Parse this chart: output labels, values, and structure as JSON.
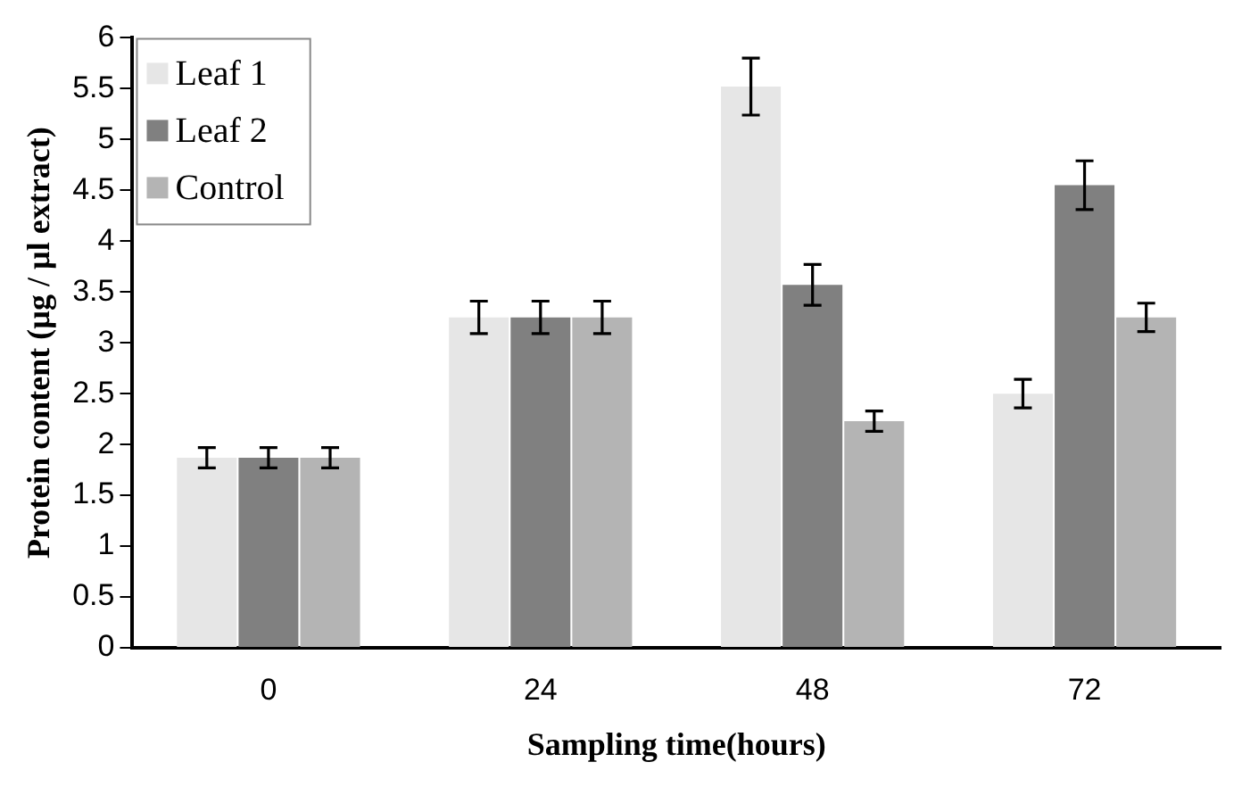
{
  "chart_data": {
    "type": "bar",
    "xlabel": "Sampling time(hours)",
    "ylabel": "Protein content (µg / µl extract)",
    "categories": [
      "0",
      "24",
      "48",
      "72"
    ],
    "series": [
      {
        "name": "Leaf 1",
        "color": "#e6e6e6",
        "values": [
          1.87,
          3.25,
          5.52,
          2.5
        ],
        "errors": [
          0.1,
          0.16,
          0.28,
          0.14
        ]
      },
      {
        "name": "Leaf 2",
        "color": "#808080",
        "values": [
          1.87,
          3.25,
          3.57,
          4.55
        ],
        "errors": [
          0.1,
          0.16,
          0.2,
          0.24
        ]
      },
      {
        "name": "Control",
        "color": "#b4b4b4",
        "values": [
          1.87,
          3.25,
          2.23,
          3.25
        ],
        "errors": [
          0.1,
          0.16,
          0.1,
          0.14
        ]
      }
    ],
    "ylim": [
      0,
      6
    ],
    "yticks": [
      0,
      0.5,
      1,
      1.5,
      2,
      2.5,
      3,
      3.5,
      4,
      4.5,
      5,
      5.5,
      6
    ],
    "grid": false,
    "legend": "top left"
  }
}
